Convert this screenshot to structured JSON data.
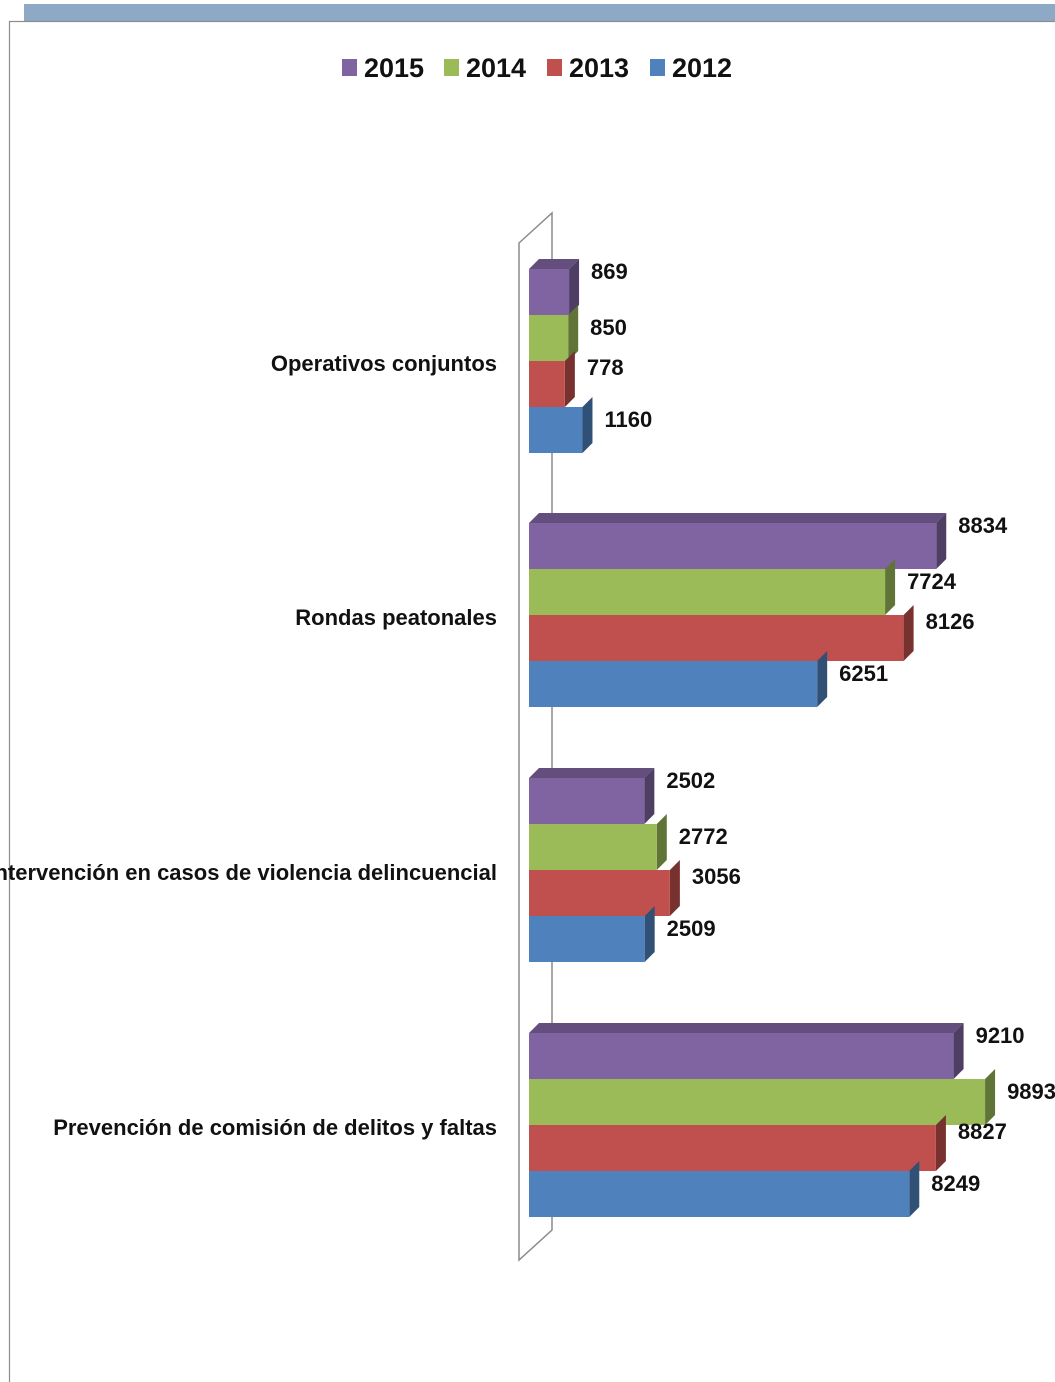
{
  "chart_data": {
    "type": "bar",
    "orientation": "horizontal",
    "three_d": true,
    "title": "",
    "xlabel": "",
    "ylabel": "",
    "grid": false,
    "legend_position": "top",
    "categories": [
      "Operativos conjuntos",
      "Rondas peatonales",
      "Intervención en casos de violencia delincuencial",
      "Prevención de comisión de delitos y faltas"
    ],
    "series": [
      {
        "name": "2015",
        "color": "#8064a2",
        "values": [
          869,
          8834,
          2502,
          9210
        ]
      },
      {
        "name": "2014",
        "color": "#9bbb59",
        "values": [
          850,
          7724,
          2772,
          9893
        ]
      },
      {
        "name": "2013",
        "color": "#c0504d",
        "values": [
          778,
          8126,
          3056,
          8827
        ]
      },
      {
        "name": "2012",
        "color": "#4f81bd",
        "values": [
          1160,
          6251,
          2509,
          8249
        ]
      }
    ]
  }
}
